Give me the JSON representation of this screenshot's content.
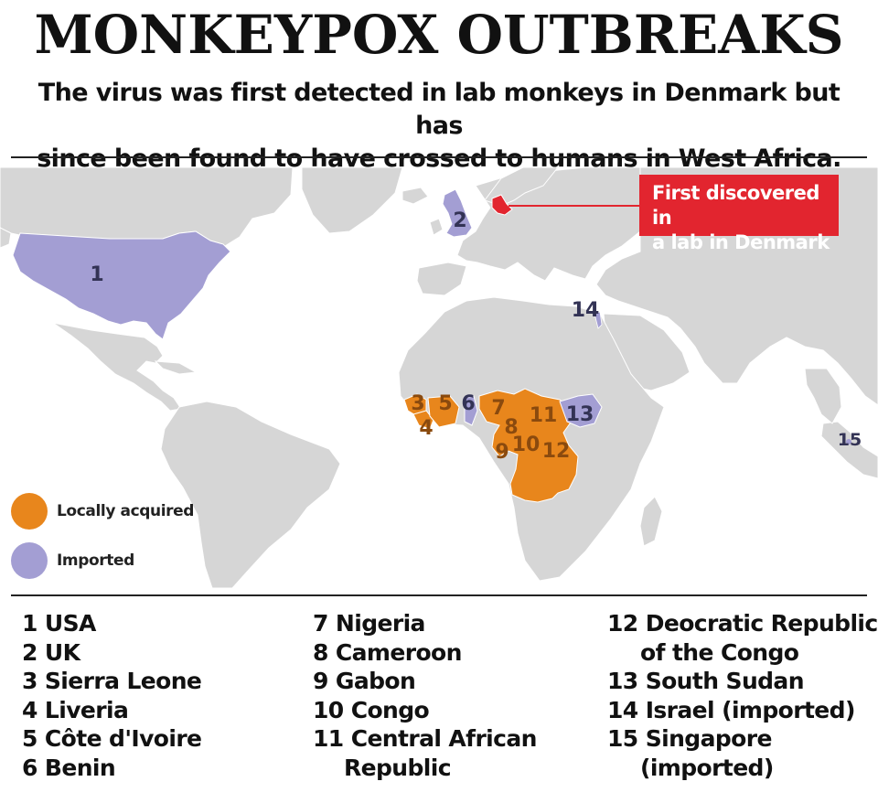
{
  "title": "MONKEYPOX OUTBREAKS",
  "subtitle_line1": "The virus was first detected in lab monkeys in Denmark but has",
  "subtitle_line2": "since been found to have crossed to humans in West Africa.",
  "callout": {
    "line1": "First discovered in",
    "line2": "a lab in Denmark"
  },
  "legend": {
    "local": {
      "label": "Locally acquired",
      "color": "#e8861c"
    },
    "imported": {
      "label": "Imported",
      "color": "#a39ed3"
    }
  },
  "colors": {
    "land": "#d6d6d6",
    "ocean": "#ffffff",
    "denmark": "#e2252f",
    "label_on_orange": "#8a4a0e",
    "label_on_purple": "#333355"
  },
  "map_labels": [
    {
      "id": "1",
      "text": "1"
    },
    {
      "id": "2",
      "text": "2"
    },
    {
      "id": "3",
      "text": "3"
    },
    {
      "id": "4",
      "text": "4"
    },
    {
      "id": "5",
      "text": "5"
    },
    {
      "id": "6",
      "text": "6"
    },
    {
      "id": "7",
      "text": "7"
    },
    {
      "id": "8",
      "text": "8"
    },
    {
      "id": "9",
      "text": "9"
    },
    {
      "id": "10",
      "text": "10"
    },
    {
      "id": "11",
      "text": "11"
    },
    {
      "id": "12",
      "text": "12"
    },
    {
      "id": "13",
      "text": "13"
    },
    {
      "id": "14",
      "text": "14"
    },
    {
      "id": "15",
      "text": "15"
    }
  ],
  "countries": [
    {
      "num": "1",
      "name": "USA"
    },
    {
      "num": "2",
      "name": "UK"
    },
    {
      "num": "3",
      "name": "Sierra Leone"
    },
    {
      "num": "4",
      "name": "Liveria"
    },
    {
      "num": "5",
      "name": "Côte d'Ivoire"
    },
    {
      "num": "6",
      "name": "Benin"
    },
    {
      "num": "7",
      "name": "Nigeria"
    },
    {
      "num": "8",
      "name": "Cameroon"
    },
    {
      "num": "9",
      "name": "Gabon"
    },
    {
      "num": "10",
      "name": "Congo"
    },
    {
      "num": "11",
      "name": "Central African",
      "cont": "Republic"
    },
    {
      "num": "12",
      "name": "Deocratic Republic",
      "cont": "of the Congo"
    },
    {
      "num": "13",
      "name": "South Sudan"
    },
    {
      "num": "14",
      "name": "Israel (imported)"
    },
    {
      "num": "15",
      "name": "Singapore",
      "cont": "(imported)"
    }
  ]
}
